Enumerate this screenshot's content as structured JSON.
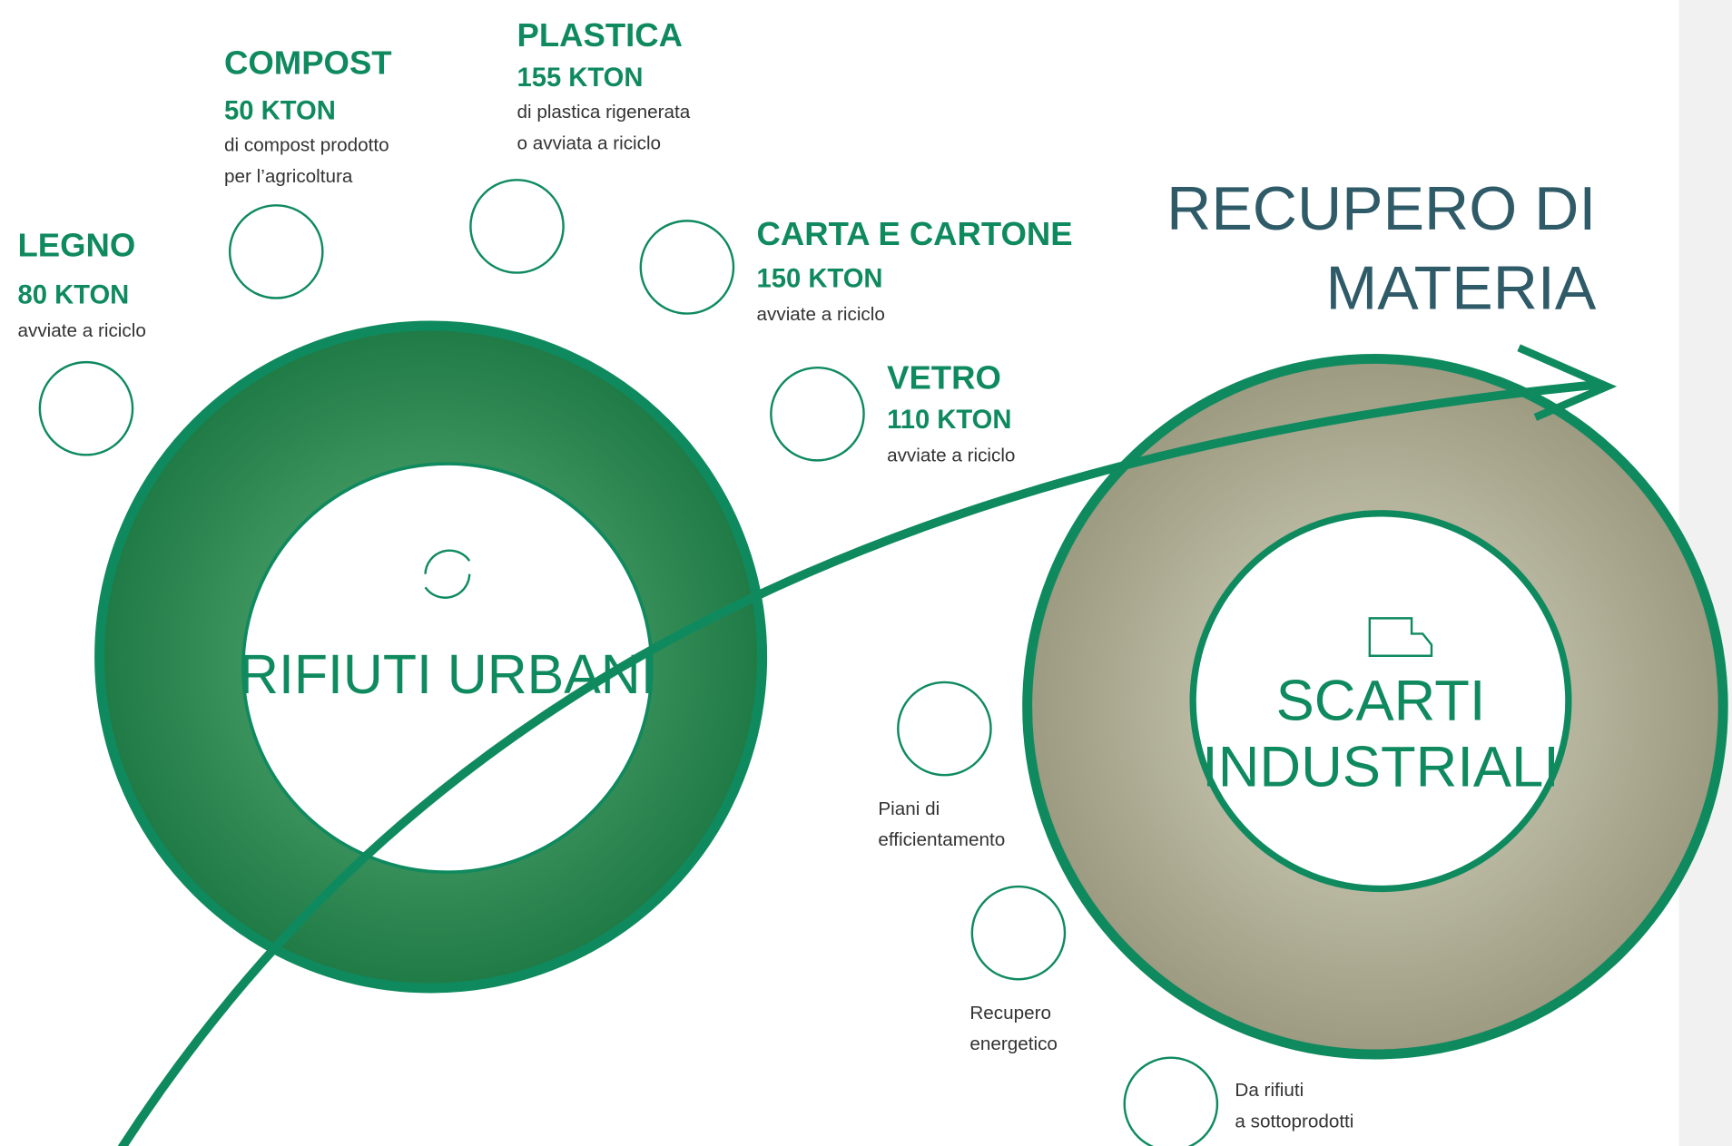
{
  "heading": [
    "RECUPERO DI",
    "MATERIA"
  ],
  "materials": [
    {
      "name": "LEGNO",
      "amount": "80 KTON",
      "description": [
        "avviate a riciclo"
      ]
    },
    {
      "name": "COMPOST",
      "amount": "50 KTON",
      "description": [
        "di compost prodotto",
        "per l’agricoltura"
      ]
    },
    {
      "name": "PLASTICA",
      "amount": "155 KTON",
      "description": [
        "di plastica rigenerata",
        "o avviata a riciclo"
      ]
    },
    {
      "name": "CARTA E CARTONE",
      "amount": "150 KTON",
      "description": [
        "avviate a riciclo"
      ]
    },
    {
      "name": "VETRO",
      "amount": "110 KTON",
      "description": [
        "avviate a riciclo"
      ]
    }
  ],
  "urban": {
    "title": "RIFIUTI URBANI"
  },
  "industrial": {
    "title": [
      "SCARTI",
      "INDUSTRIALI"
    ]
  },
  "services": [
    {
      "label": [
        "Piani di",
        "efficientamento"
      ]
    },
    {
      "label": [
        "Recupero",
        "energetico"
      ]
    },
    {
      "label": [
        "Da rifiuti",
        "a sottoprodotti"
      ]
    }
  ]
}
